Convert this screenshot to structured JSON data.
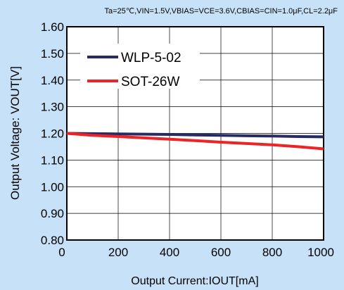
{
  "chart_data": {
    "type": "line",
    "conditions": "Ta=25℃,VIN=1.5V,VBIAS=VCE=3.6V,CBIAS=CIN=1.0μF,CL=2.2μF",
    "xlabel": "Output Current:IOUT[mA]",
    "ylabel": "Output Voltage: VOUT[V]",
    "xlim": [
      0,
      1000
    ],
    "ylim": [
      0.8,
      1.6
    ],
    "x_ticks": [
      "0",
      "200",
      "400",
      "600",
      "800",
      "1000"
    ],
    "y_ticks": [
      "0.80",
      "0.90",
      "1.00",
      "1.10",
      "1.20",
      "1.30",
      "1.40",
      "1.50",
      "1.60"
    ],
    "grid": true,
    "legend_position": "top-left",
    "series": [
      {
        "name": "WLP-5-02",
        "color": "#262c63",
        "x": [
          0,
          100,
          200,
          300,
          400,
          500,
          600,
          700,
          800,
          900,
          1000
        ],
        "y": [
          1.2,
          1.199,
          1.198,
          1.197,
          1.196,
          1.194,
          1.193,
          1.191,
          1.19,
          1.188,
          1.187
        ]
      },
      {
        "name": "SOT-26W",
        "color": "#ee2325",
        "x": [
          0,
          100,
          200,
          300,
          400,
          500,
          600,
          700,
          800,
          900,
          1000
        ],
        "y": [
          1.2,
          1.193,
          1.188,
          1.183,
          1.178,
          1.173,
          1.167,
          1.162,
          1.157,
          1.15,
          1.142
        ]
      }
    ]
  }
}
